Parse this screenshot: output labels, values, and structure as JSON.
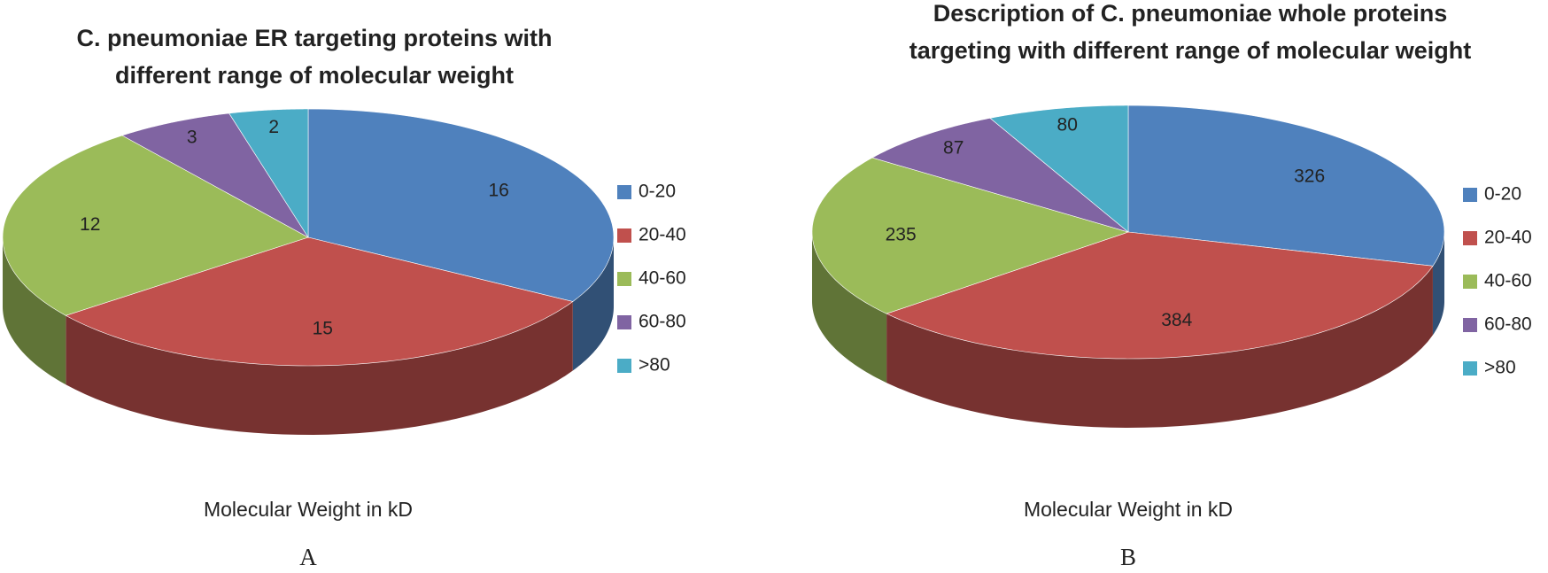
{
  "chart_data": [
    {
      "type": "pie",
      "title": "C. pneumoniae ER targeting  proteins with different range of  molecular weight",
      "categories": [
        "0-20",
        "20-40",
        "40-60",
        "60-80",
        ">80"
      ],
      "values": [
        16,
        15,
        12,
        3,
        2
      ],
      "colors": [
        "#4f81bd",
        "#c0504d",
        "#9bbb59",
        "#8064a2",
        "#4bacc6"
      ],
      "xlabel": "Molecular Weight in kD",
      "panel_label": "A",
      "legend": "right"
    },
    {
      "type": "pie",
      "title": "Description of C. pneumoniae whole proteins targeting with different range of molecular weight",
      "categories": [
        "0-20",
        "20-40",
        "40-60",
        "60-80",
        ">80"
      ],
      "values": [
        326,
        384,
        235,
        87,
        80
      ],
      "colors": [
        "#4f81bd",
        "#c0504d",
        "#9bbb59",
        "#8064a2",
        "#4bacc6"
      ],
      "xlabel": "Molecular Weight in kD",
      "panel_label": "B",
      "legend": "right"
    }
  ]
}
